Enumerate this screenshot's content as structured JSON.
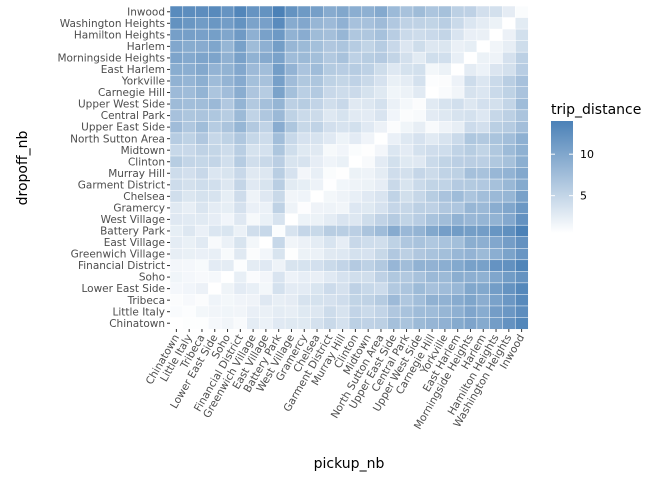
{
  "chart_data": {
    "type": "heatmap",
    "xlabel": "pickup_nb",
    "ylabel": "dropoff_nb",
    "x_categories": [
      "Chinatown",
      "Little Italy",
      "Tribeca",
      "Lower East Side",
      "Soho",
      "Financial District",
      "Greenwich Village",
      "East Village",
      "Battery Park",
      "West Village",
      "Gramercy",
      "Chelsea",
      "Garment District",
      "Murray Hill",
      "Clinton",
      "Midtown",
      "North Sutton Area",
      "Upper East Side",
      "Central Park",
      "Upper West Side",
      "Carnegie Hill",
      "Yorkville",
      "East Harlem",
      "Morningside Heights",
      "Harlem",
      "Hamilton Heights",
      "Washington Heights",
      "Inwood"
    ],
    "y_categories_top_to_bottom": [
      "Inwood",
      "Washington Heights",
      "Hamilton Heights",
      "Harlem",
      "Morningside Heights",
      "East Harlem",
      "Yorkville",
      "Carnegie Hill",
      "Upper West Side",
      "Central Park",
      "Upper East Side",
      "North Sutton Area",
      "Midtown",
      "Clinton",
      "Murray Hill",
      "Garment District",
      "Chelsea",
      "Gramercy",
      "West Village",
      "Battery Park",
      "East Village",
      "Greenwich Village",
      "Financial District",
      "Soho",
      "Lower East Side",
      "Tribeca",
      "Little Italy",
      "Chinatown"
    ],
    "value_variable": "trip_distance",
    "value_note": "mean trip distance per pickup/dropoff pair (approximate, estimated from color)",
    "colorbar": {
      "min": 0.5,
      "max": 14,
      "ticks": [
        5,
        10
      ],
      "low_color": "#ffffff",
      "high_color": "#4b81b7"
    },
    "legend_title": "trip_distance",
    "legend_position": "right",
    "grid": true
  }
}
